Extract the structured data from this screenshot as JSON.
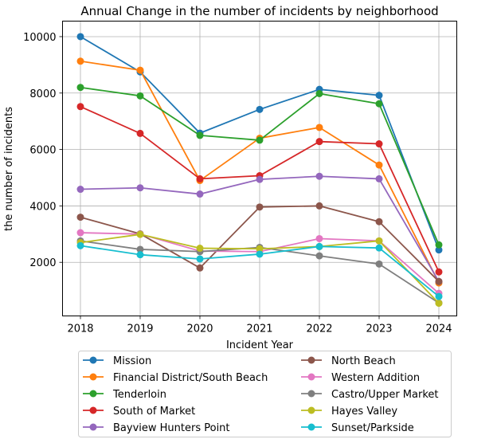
{
  "chart_data": {
    "type": "line",
    "title": "Annual Change in the number of incidents by neighborhood",
    "xlabel": "Incident Year",
    "ylabel": "the number of incidents",
    "x": [
      2018,
      2019,
      2020,
      2021,
      2022,
      2023,
      2024
    ],
    "xlim": [
      2017.7,
      2024.3
    ],
    "ylim": [
      100,
      10550
    ],
    "yticks": [
      2000,
      4000,
      6000,
      8000,
      10000
    ],
    "grid": true,
    "legend_position": "bottom",
    "series": [
      {
        "name": "Mission",
        "color": "#1f77b4",
        "values": [
          10000,
          8750,
          6580,
          7420,
          8130,
          7920,
          2440
        ]
      },
      {
        "name": "Financial District/South Beach",
        "color": "#ff7f0e",
        "values": [
          9130,
          8810,
          4900,
          6400,
          6780,
          5450,
          1270
        ]
      },
      {
        "name": "Tenderloin",
        "color": "#2ca02c",
        "values": [
          8200,
          7900,
          6500,
          6330,
          7980,
          7620,
          2620
        ]
      },
      {
        "name": "South of Market",
        "color": "#d62728",
        "values": [
          7520,
          6570,
          4960,
          5070,
          6280,
          6200,
          1660
        ]
      },
      {
        "name": "Bayview Hunters Point",
        "color": "#9467bd",
        "values": [
          4590,
          4640,
          4420,
          4940,
          5050,
          4960,
          1320
        ]
      },
      {
        "name": "North Beach",
        "color": "#8c564b",
        "values": [
          3600,
          3010,
          1800,
          3960,
          4000,
          3440,
          1320
        ]
      },
      {
        "name": "Western Addition",
        "color": "#e377c2",
        "values": [
          3050,
          3000,
          2400,
          2380,
          2840,
          2760,
          900
        ]
      },
      {
        "name": "Castro/Upper Market",
        "color": "#7f7f7f",
        "values": [
          2760,
          2460,
          2380,
          2530,
          2230,
          1940,
          560
        ]
      },
      {
        "name": "Hayes Valley",
        "color": "#bcbd22",
        "values": [
          2700,
          2990,
          2500,
          2480,
          2560,
          2760,
          550
        ]
      },
      {
        "name": "Sunset/Parkside",
        "color": "#17becf",
        "values": [
          2590,
          2270,
          2120,
          2290,
          2560,
          2510,
          790
        ]
      }
    ]
  }
}
